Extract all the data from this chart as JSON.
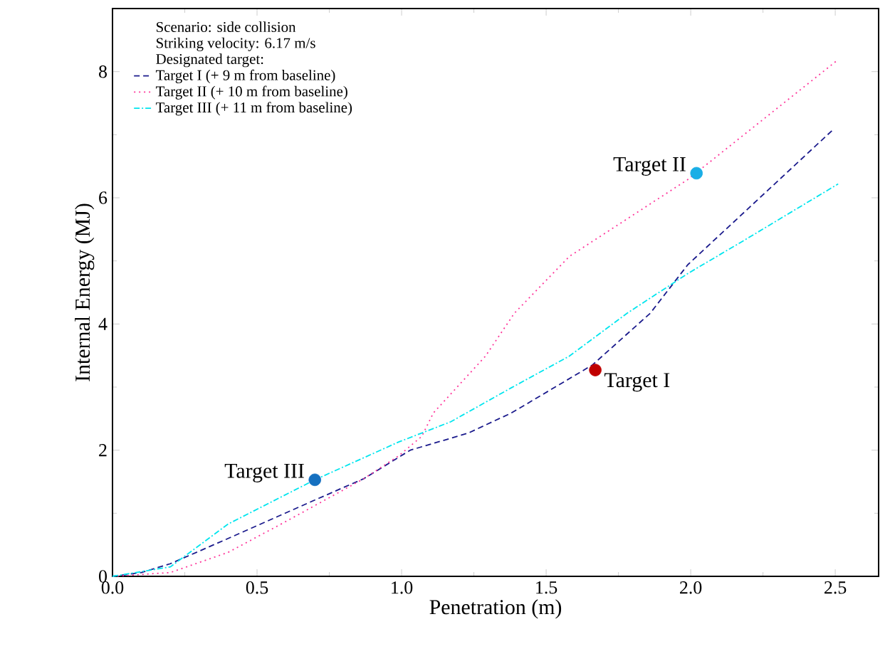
{
  "chart_data": {
    "type": "line",
    "xlabel": "Penetration (m)",
    "ylabel": "Internal Energy (MJ)",
    "legend_title": "Designated target:",
    "annotations": [
      "Scenario: side collision",
      "Striking velocity: 6.17 m/s",
      {
        "text": "Target I",
        "x": 1.67,
        "y": 3.27
      },
      {
        "text": "Target II",
        "x": 2.02,
        "y": 6.39
      },
      {
        "text": "Target III",
        "x": 0.7,
        "y": 1.53
      }
    ],
    "xlim": [
      0,
      2.65
    ],
    "ylim": [
      0,
      9
    ],
    "xticks": [
      {
        "value": 0,
        "label": "0.0"
      },
      0.5,
      {
        "value": 1,
        "label": "1.0"
      },
      1.5,
      {
        "value": 2,
        "label": "2.0"
      },
      2.5
    ],
    "yticks": [
      0,
      2,
      4,
      6,
      8
    ],
    "legend": "top left",
    "grid": false,
    "series": [
      {
        "name": "Target I (+ 9 m from baseline)",
        "color": "#1a1a8c",
        "line_style": "dashed",
        "x": [
          0,
          0.1,
          0.2,
          0.4,
          0.69,
          0.87,
          1.03,
          1.23,
          1.38,
          1.66,
          1.86,
          1.99,
          2.49
        ],
        "values": [
          0,
          0.06,
          0.2,
          0.6,
          1.19,
          1.55,
          2.0,
          2.27,
          2.59,
          3.35,
          4.17,
          4.94,
          7.07
        ]
      },
      {
        "name": "Target II (+ 10 m from baseline)",
        "color": "#ff3399",
        "line_style": "dotted",
        "x": [
          0,
          0.2,
          0.4,
          0.6,
          0.87,
          0.99,
          1.07,
          1.11,
          1.29,
          1.39,
          1.58,
          1.99,
          2.51
        ],
        "values": [
          0,
          0.06,
          0.38,
          0.87,
          1.55,
          1.91,
          2.22,
          2.59,
          3.49,
          4.17,
          5.07,
          6.29,
          8.19
        ]
      },
      {
        "name": "Target III (+ 11 m from baseline)",
        "color": "#00e5ee",
        "line_style": "dashdotted",
        "x": [
          0,
          0.2,
          0.4,
          0.7,
          0.99,
          1.17,
          1.38,
          1.58,
          1.78,
          1.99,
          2.19,
          2.51
        ],
        "values": [
          0,
          0.15,
          0.83,
          1.53,
          2.13,
          2.45,
          2.99,
          3.49,
          4.17,
          4.8,
          5.34,
          6.22
        ]
      },
      {
        "type": "scatter",
        "marker": "circle",
        "color": "#c00000",
        "x": [
          1.67
        ],
        "values": [
          3.27
        ]
      },
      {
        "type": "scatter",
        "marker": "circle",
        "color": "#1aaee6",
        "x": [
          2.02
        ],
        "values": [
          6.39
        ]
      },
      {
        "type": "scatter",
        "marker": "circle",
        "color": "#1570c0",
        "x": [
          0.7
        ],
        "values": [
          1.53
        ]
      }
    ]
  }
}
